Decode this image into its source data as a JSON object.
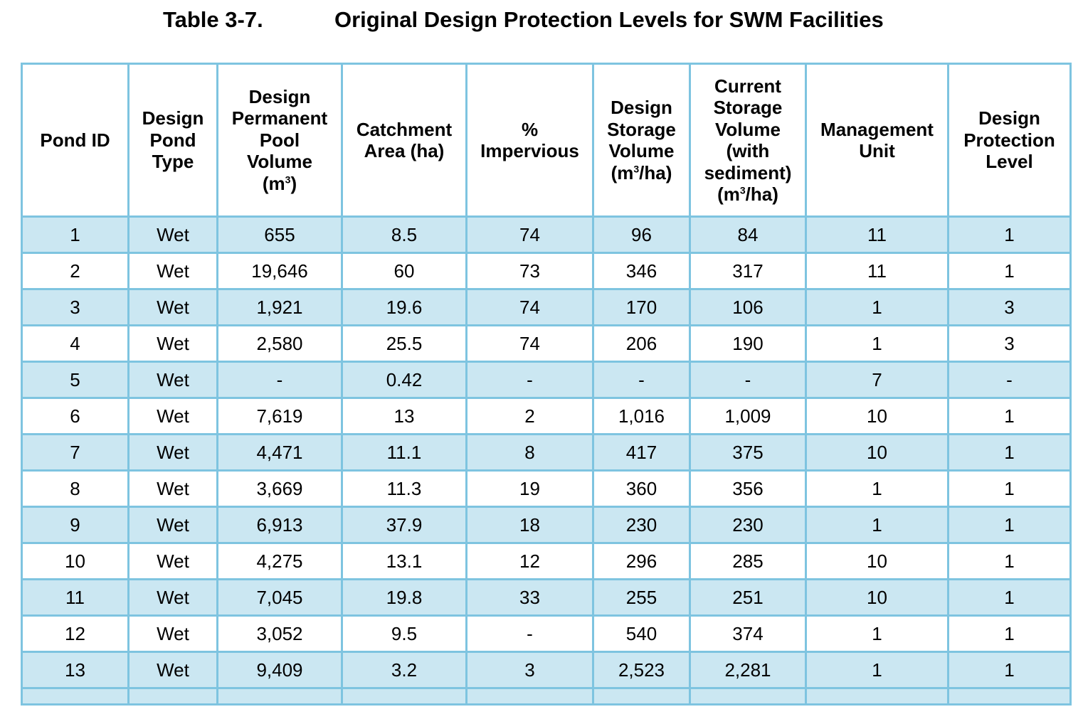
{
  "caption": {
    "number": "Table 3-7.",
    "title": "Original Design Protection Levels for SWM Facilities"
  },
  "columns": [
    {
      "lines": [
        "Pond ID"
      ]
    },
    {
      "lines": [
        "Design",
        "Pond",
        "Type"
      ]
    },
    {
      "lines": [
        "Design",
        "Permanent",
        "Pool",
        "Volume",
        "(m3)"
      ]
    },
    {
      "lines": [
        "Catchment",
        "Area (ha)"
      ]
    },
    {
      "lines": [
        "%",
        "Impervious"
      ]
    },
    {
      "lines": [
        "Design",
        "Storage",
        "Volume",
        "(m3/ha)"
      ]
    },
    {
      "lines": [
        "Current",
        "Storage",
        "Volume",
        "(with",
        "sediment)",
        "(m3/ha)"
      ]
    },
    {
      "lines": [
        "Management",
        "Unit"
      ]
    },
    {
      "lines": [
        "Design",
        "Protection",
        "Level"
      ]
    }
  ],
  "rows": [
    [
      "1",
      "Wet",
      "655",
      "8.5",
      "74",
      "96",
      "84",
      "11",
      "1"
    ],
    [
      "2",
      "Wet",
      "19,646",
      "60",
      "73",
      "346",
      "317",
      "11",
      "1"
    ],
    [
      "3",
      "Wet",
      "1,921",
      "19.6",
      "74",
      "170",
      "106",
      "1",
      "3"
    ],
    [
      "4",
      "Wet",
      "2,580",
      "25.5",
      "74",
      "206",
      "190",
      "1",
      "3"
    ],
    [
      "5",
      "Wet",
      "-",
      "0.42",
      "-",
      "-",
      "-",
      "7",
      "-"
    ],
    [
      "6",
      "Wet",
      "7,619",
      "13",
      "2",
      "1,016",
      "1,009",
      "10",
      "1"
    ],
    [
      "7",
      "Wet",
      "4,471",
      "11.1",
      "8",
      "417",
      "375",
      "10",
      "1"
    ],
    [
      "8",
      "Wet",
      "3,669",
      "11.3",
      "19",
      "360",
      "356",
      "1",
      "1"
    ],
    [
      "9",
      "Wet",
      "6,913",
      "37.9",
      "18",
      "230",
      "230",
      "1",
      "1"
    ],
    [
      "10",
      "Wet",
      "4,275",
      "13.1",
      "12",
      "296",
      "285",
      "10",
      "1"
    ],
    [
      "11",
      "Wet",
      "7,045",
      "19.8",
      "33",
      "255",
      "251",
      "10",
      "1"
    ],
    [
      "12",
      "Wet",
      "3,052",
      "9.5",
      "-",
      "540",
      "374",
      "1",
      "1"
    ],
    [
      "13",
      "Wet",
      "9,409",
      "3.2",
      "3",
      "2,523",
      "2,281",
      "1",
      "1"
    ]
  ],
  "colors": {
    "border": "#7ec4e0",
    "row_shade": "#cbe7f2",
    "row_plain": "#ffffff"
  }
}
